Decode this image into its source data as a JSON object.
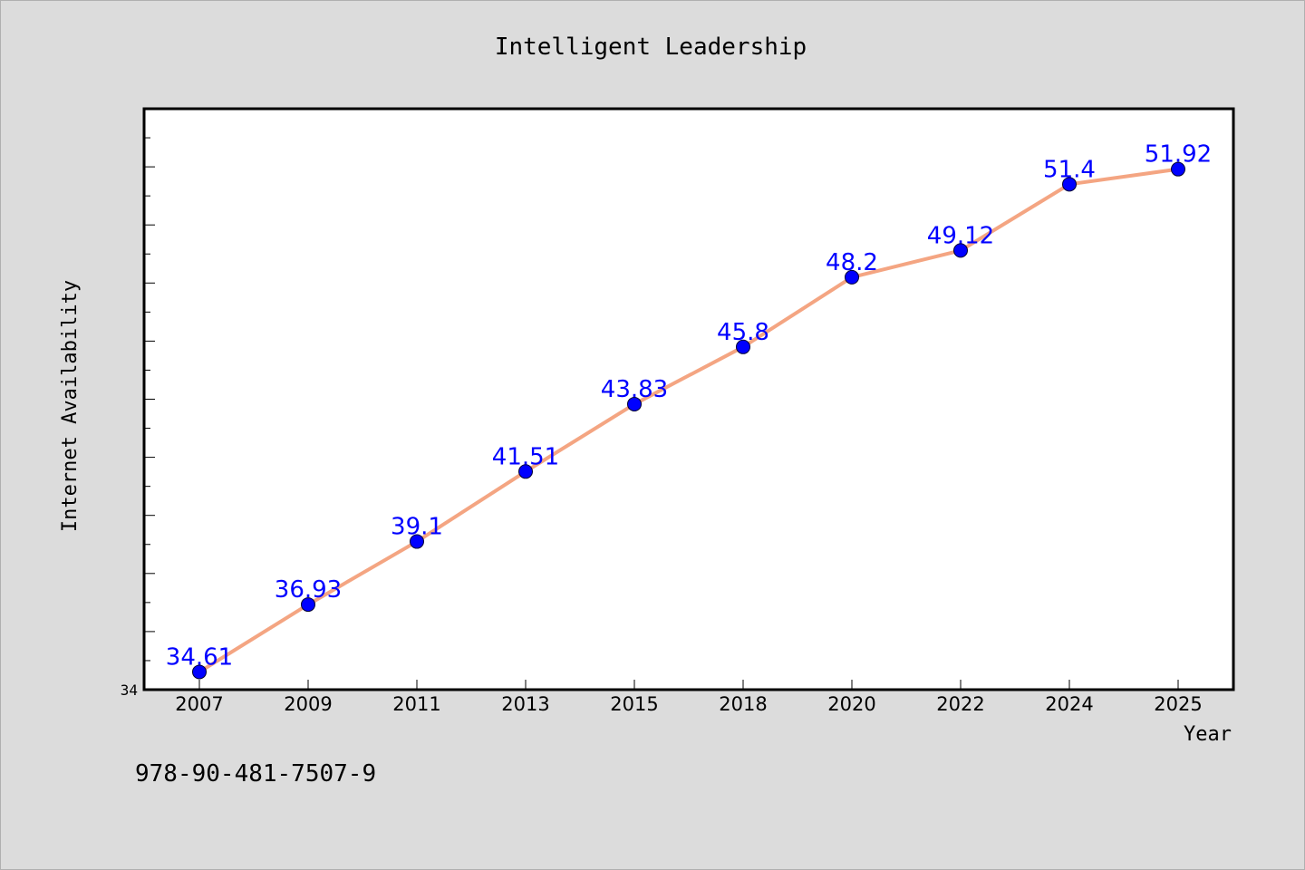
{
  "chart_data": {
    "type": "line",
    "title": "Intelligent Leadership",
    "xlabel": "Year",
    "ylabel": "Internet Availability",
    "categories": [
      "2007",
      "2009",
      "2011",
      "2013",
      "2015",
      "2018",
      "2020",
      "2022",
      "2024",
      "2025"
    ],
    "series": [
      {
        "values": [
          34.61,
          36.93,
          39.1,
          41.51,
          43.83,
          45.8,
          48.2,
          49.12,
          51.4,
          51.92
        ],
        "data_labels": [
          "34.61",
          "36.93",
          "39.1",
          "41.51",
          "43.83",
          "45.8",
          "48.2",
          "49.12",
          "51.4",
          "51.92"
        ],
        "line_color": "#f4a582",
        "marker_color": "#0000ff",
        "label_color": "#0000ff"
      }
    ],
    "ylim": [
      34,
      54
    ],
    "y_tick_labels": [
      "34"
    ],
    "grid": false,
    "legend": "none"
  },
  "footer_text": "978-90-481-7507-9"
}
